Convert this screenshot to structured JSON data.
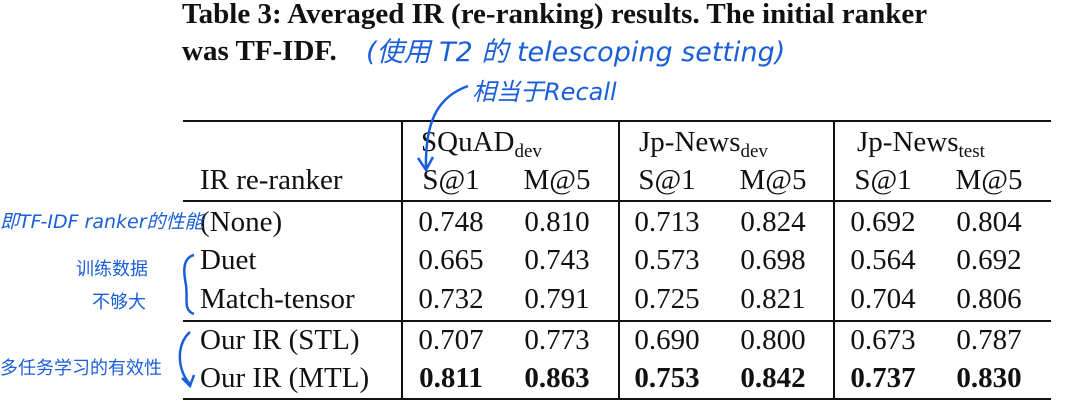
{
  "caption": {
    "line1": "Table 3: Averaged IR (re-ranking) results. The initial ranker",
    "line2": "was TF-IDF."
  },
  "header": {
    "ir_reranker": "IR re-ranker",
    "groups": [
      {
        "base": "SQuAD",
        "sub": "dev"
      },
      {
        "base": "Jp-News",
        "sub": "dev"
      },
      {
        "base": "Jp-News",
        "sub": "test"
      }
    ],
    "metrics": [
      "S@1",
      "M@5",
      "S@1",
      "M@5",
      "S@1",
      "M@5"
    ]
  },
  "rows": [
    {
      "name": "(None)",
      "values": [
        "0.748",
        "0.810",
        "0.713",
        "0.824",
        "0.692",
        "0.804"
      ],
      "bold": false
    },
    {
      "name": "Duet",
      "values": [
        "0.665",
        "0.743",
        "0.573",
        "0.698",
        "0.564",
        "0.692"
      ],
      "bold": false
    },
    {
      "name": "Match-tensor",
      "values": [
        "0.732",
        "0.791",
        "0.725",
        "0.821",
        "0.704",
        "0.806"
      ],
      "bold": false
    },
    {
      "name": "Our IR (STL)",
      "values": [
        "0.707",
        "0.773",
        "0.690",
        "0.800",
        "0.673",
        "0.787"
      ],
      "bold": false
    },
    {
      "name": "Our IR (MTL)",
      "values": [
        "0.811",
        "0.863",
        "0.753",
        "0.842",
        "0.737",
        "0.830"
      ],
      "bold": true
    }
  ],
  "annotations": {
    "caption_note": "(使用 T2 的 telescoping setting)",
    "recall_note": "相当于Recall",
    "none_note": "即TF-IDF ranker的性能",
    "data_note_line1": "训练数据",
    "data_note_line2": "不够大",
    "mtl_note": "多任务学习的有效性",
    "ink_color": "#1a5fd9"
  }
}
